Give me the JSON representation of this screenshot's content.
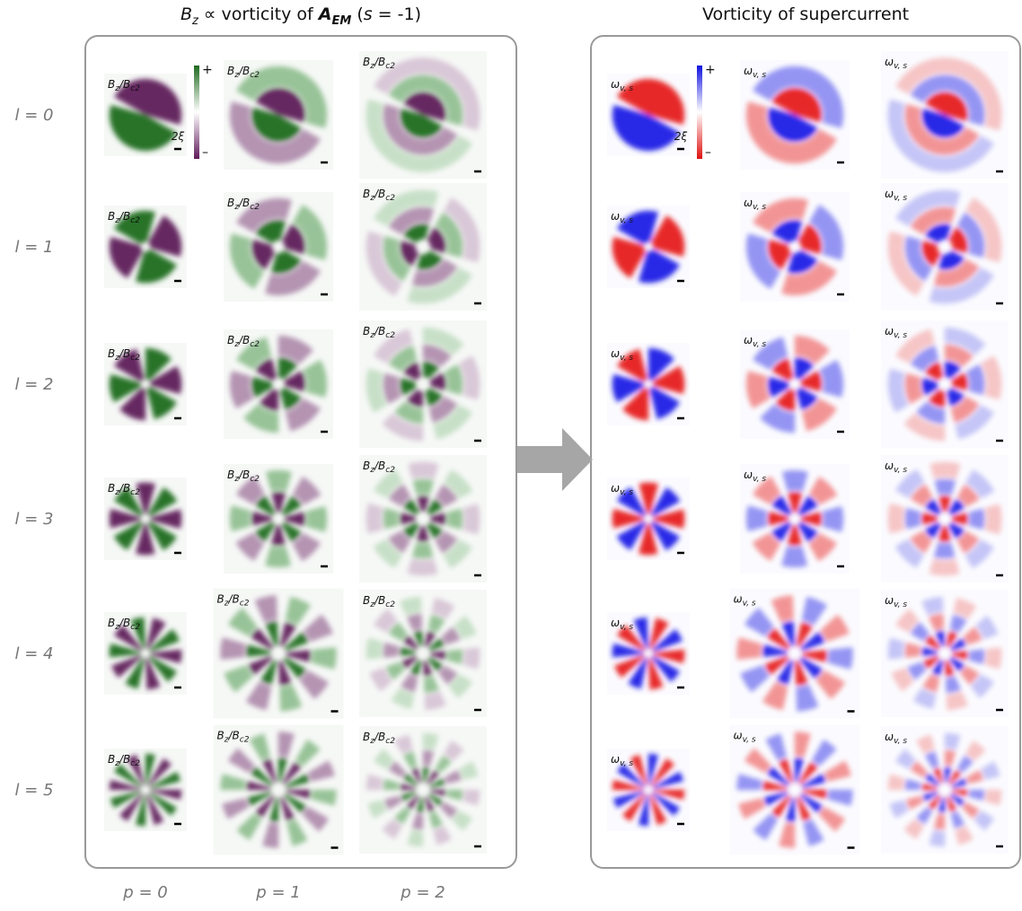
{
  "left_title": [
    "B",
    "z",
    " ∝ vorticity of ",
    "A",
    "EM",
    " (",
    "s",
    " = -1)"
  ],
  "right_title": "Vorticity of supercurrent",
  "row_labels": [
    "l = 0",
    "l = 1",
    "l = 2",
    "l = 3",
    "l = 4",
    "l = 5"
  ],
  "col_labels": [
    "p = 0",
    "p = 1",
    "p = 2"
  ],
  "panel_label_left": [
    "B",
    "z",
    "/B",
    "c2"
  ],
  "panel_label_right": [
    "ω",
    "v, s"
  ],
  "colorbar": {
    "plus": "+",
    "minus": "–",
    "scale": "2ξ"
  }
}
